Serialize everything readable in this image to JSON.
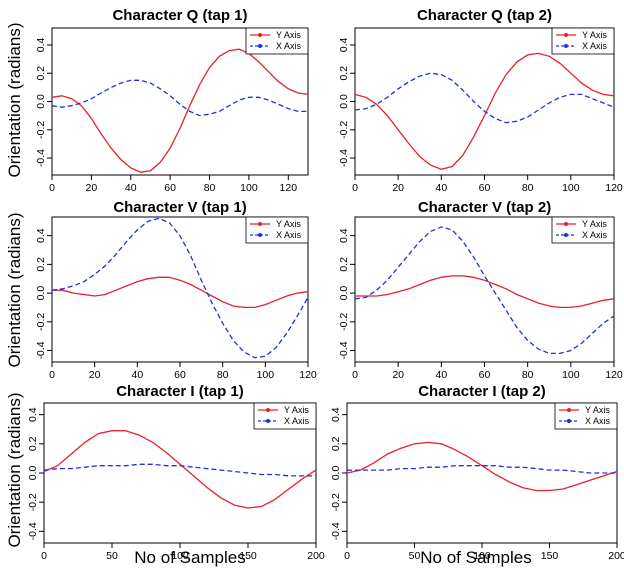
{
  "figure": {
    "ylabel": "Orientation (radians)",
    "xlabel": "No of Samples"
  },
  "chart_data": [
    {
      "type": "line",
      "title": "Character Q (tap 1)",
      "xlim": [
        0,
        130
      ],
      "ylim": [
        -0.52,
        0.52
      ],
      "xticks": [
        0,
        20,
        40,
        60,
        80,
        100,
        120
      ],
      "yticks": [
        -0.4,
        -0.2,
        0.0,
        0.2,
        0.4
      ],
      "legend": "top-right",
      "series": [
        {
          "name": "Y Axis",
          "color": "#e8202a",
          "dash": "solid",
          "x": [
            0,
            5,
            10,
            15,
            20,
            25,
            30,
            35,
            40,
            45,
            50,
            55,
            60,
            65,
            70,
            75,
            80,
            85,
            90,
            95,
            100,
            105,
            110,
            115,
            120,
            125,
            130
          ],
          "y": [
            0.03,
            0.04,
            0.02,
            -0.03,
            -0.12,
            -0.23,
            -0.33,
            -0.41,
            -0.47,
            -0.5,
            -0.49,
            -0.43,
            -0.33,
            -0.19,
            -0.03,
            0.12,
            0.24,
            0.32,
            0.36,
            0.37,
            0.34,
            0.28,
            0.21,
            0.14,
            0.09,
            0.06,
            0.05
          ]
        },
        {
          "name": "X Axis",
          "color": "#2030e0",
          "dash": "dashed",
          "x": [
            0,
            5,
            10,
            15,
            20,
            25,
            30,
            35,
            40,
            45,
            50,
            55,
            60,
            65,
            70,
            75,
            80,
            85,
            90,
            95,
            100,
            105,
            110,
            115,
            120,
            125,
            130
          ],
          "y": [
            -0.03,
            -0.04,
            -0.03,
            -0.01,
            0.02,
            0.06,
            0.1,
            0.13,
            0.15,
            0.15,
            0.13,
            0.09,
            0.04,
            -0.02,
            -0.07,
            -0.1,
            -0.09,
            -0.07,
            -0.03,
            0.01,
            0.03,
            0.03,
            0.01,
            -0.02,
            -0.05,
            -0.07,
            -0.07
          ]
        }
      ]
    },
    {
      "type": "line",
      "title": "Character Q (tap 2)",
      "xlim": [
        0,
        120
      ],
      "ylim": [
        -0.52,
        0.52
      ],
      "xticks": [
        0,
        20,
        40,
        60,
        80,
        100,
        120
      ],
      "yticks": [
        -0.4,
        -0.2,
        0.0,
        0.2,
        0.4
      ],
      "legend": "top-right",
      "series": [
        {
          "name": "Y Axis",
          "color": "#e8202a",
          "dash": "solid",
          "x": [
            0,
            5,
            10,
            15,
            20,
            25,
            30,
            35,
            40,
            45,
            50,
            55,
            60,
            65,
            70,
            75,
            80,
            85,
            90,
            95,
            100,
            105,
            110,
            115,
            120
          ],
          "y": [
            0.05,
            0.03,
            -0.02,
            -0.1,
            -0.2,
            -0.3,
            -0.39,
            -0.45,
            -0.48,
            -0.46,
            -0.38,
            -0.25,
            -0.1,
            0.06,
            0.19,
            0.28,
            0.33,
            0.34,
            0.32,
            0.27,
            0.2,
            0.13,
            0.08,
            0.05,
            0.04
          ]
        },
        {
          "name": "X Axis",
          "color": "#2030e0",
          "dash": "dashed",
          "x": [
            0,
            5,
            10,
            15,
            20,
            25,
            30,
            35,
            40,
            45,
            50,
            55,
            60,
            65,
            70,
            75,
            80,
            85,
            90,
            95,
            100,
            105,
            110,
            115,
            120
          ],
          "y": [
            -0.06,
            -0.05,
            -0.02,
            0.03,
            0.09,
            0.14,
            0.18,
            0.2,
            0.19,
            0.15,
            0.08,
            0.0,
            -0.07,
            -0.12,
            -0.15,
            -0.14,
            -0.11,
            -0.06,
            -0.01,
            0.03,
            0.05,
            0.05,
            0.02,
            -0.01,
            -0.04
          ]
        }
      ]
    },
    {
      "type": "line",
      "title": "Character V (tap 1)",
      "xlim": [
        0,
        120
      ],
      "ylim": [
        -0.48,
        0.53
      ],
      "xticks": [
        0,
        20,
        40,
        60,
        80,
        100,
        120
      ],
      "yticks": [
        -0.4,
        -0.2,
        0.0,
        0.2,
        0.4
      ],
      "legend": "top-right",
      "series": [
        {
          "name": "Y Axis",
          "color": "#e8202a",
          "dash": "solid",
          "x": [
            0,
            5,
            10,
            15,
            20,
            25,
            30,
            35,
            40,
            45,
            50,
            55,
            60,
            65,
            70,
            75,
            80,
            85,
            90,
            95,
            100,
            105,
            110,
            115,
            120
          ],
          "y": [
            0.02,
            0.02,
            0.0,
            -0.01,
            -0.02,
            -0.01,
            0.02,
            0.05,
            0.08,
            0.1,
            0.11,
            0.11,
            0.09,
            0.06,
            0.02,
            -0.02,
            -0.06,
            -0.09,
            -0.1,
            -0.1,
            -0.08,
            -0.05,
            -0.02,
            0.0,
            0.01
          ]
        },
        {
          "name": "X Axis",
          "color": "#2030e0",
          "dash": "dashed",
          "x": [
            0,
            5,
            10,
            15,
            20,
            25,
            30,
            35,
            40,
            45,
            50,
            55,
            60,
            65,
            70,
            75,
            80,
            85,
            90,
            95,
            100,
            105,
            110,
            115,
            120
          ],
          "y": [
            0.02,
            0.03,
            0.05,
            0.08,
            0.13,
            0.19,
            0.27,
            0.36,
            0.44,
            0.5,
            0.52,
            0.49,
            0.4,
            0.26,
            0.09,
            -0.07,
            -0.21,
            -0.33,
            -0.41,
            -0.45,
            -0.44,
            -0.38,
            -0.28,
            -0.16,
            -0.03
          ]
        }
      ]
    },
    {
      "type": "line",
      "title": "Character V (tap 2)",
      "xlim": [
        0,
        120
      ],
      "ylim": [
        -0.48,
        0.53
      ],
      "xticks": [
        0,
        20,
        40,
        60,
        80,
        100,
        120
      ],
      "yticks": [
        -0.4,
        -0.2,
        0.0,
        0.2,
        0.4
      ],
      "legend": "top-right",
      "series": [
        {
          "name": "Y Axis",
          "color": "#e8202a",
          "dash": "solid",
          "x": [
            0,
            5,
            10,
            15,
            20,
            25,
            30,
            35,
            40,
            45,
            50,
            55,
            60,
            65,
            70,
            75,
            80,
            85,
            90,
            95,
            100,
            105,
            110,
            115,
            120
          ],
          "y": [
            -0.02,
            -0.02,
            -0.02,
            -0.01,
            0.01,
            0.03,
            0.06,
            0.09,
            0.11,
            0.12,
            0.12,
            0.11,
            0.09,
            0.06,
            0.03,
            -0.01,
            -0.04,
            -0.07,
            -0.09,
            -0.1,
            -0.1,
            -0.09,
            -0.07,
            -0.05,
            -0.04
          ]
        },
        {
          "name": "X Axis",
          "color": "#2030e0",
          "dash": "dashed",
          "x": [
            0,
            5,
            10,
            15,
            20,
            25,
            30,
            35,
            40,
            45,
            50,
            55,
            60,
            65,
            70,
            75,
            80,
            85,
            90,
            95,
            100,
            105,
            110,
            115,
            120
          ],
          "y": [
            -0.04,
            -0.03,
            0.02,
            0.09,
            0.18,
            0.27,
            0.36,
            0.43,
            0.46,
            0.44,
            0.36,
            0.25,
            0.12,
            0.0,
            -0.12,
            -0.24,
            -0.33,
            -0.39,
            -0.42,
            -0.42,
            -0.4,
            -0.35,
            -0.28,
            -0.21,
            -0.16
          ]
        }
      ]
    },
    {
      "type": "line",
      "title": "Character I (tap 1)",
      "xlim": [
        0,
        200
      ],
      "ylim": [
        -0.48,
        0.48
      ],
      "xticks": [
        0,
        50,
        100,
        150,
        200
      ],
      "yticks": [
        -0.4,
        -0.2,
        0.0,
        0.2,
        0.4
      ],
      "legend": "top-right",
      "series": [
        {
          "name": "Y Axis",
          "color": "#e8202a",
          "dash": "solid",
          "x": [
            0,
            10,
            20,
            30,
            40,
            50,
            60,
            70,
            80,
            90,
            100,
            110,
            120,
            130,
            140,
            150,
            160,
            170,
            180,
            190,
            200
          ],
          "y": [
            0.01,
            0.05,
            0.13,
            0.21,
            0.27,
            0.29,
            0.29,
            0.26,
            0.21,
            0.14,
            0.06,
            -0.02,
            -0.1,
            -0.17,
            -0.22,
            -0.24,
            -0.23,
            -0.18,
            -0.11,
            -0.04,
            0.02
          ]
        },
        {
          "name": "X Axis",
          "color": "#2030e0",
          "dash": "dashed",
          "x": [
            0,
            10,
            20,
            30,
            40,
            50,
            60,
            70,
            80,
            90,
            100,
            110,
            120,
            130,
            140,
            150,
            160,
            170,
            180,
            190,
            200
          ],
          "y": [
            0.02,
            0.03,
            0.03,
            0.04,
            0.05,
            0.05,
            0.05,
            0.06,
            0.06,
            0.05,
            0.05,
            0.04,
            0.03,
            0.02,
            0.01,
            0.0,
            -0.01,
            -0.01,
            -0.02,
            -0.02,
            -0.02
          ]
        }
      ]
    },
    {
      "type": "line",
      "title": "Character I (tap 2)",
      "xlim": [
        0,
        200
      ],
      "ylim": [
        -0.48,
        0.48
      ],
      "xticks": [
        0,
        50,
        100,
        150,
        200
      ],
      "yticks": [
        -0.4,
        -0.2,
        0.0,
        0.2,
        0.4
      ],
      "legend": "top-right",
      "series": [
        {
          "name": "Y Axis",
          "color": "#e8202a",
          "dash": "solid",
          "x": [
            0,
            10,
            20,
            30,
            40,
            50,
            60,
            70,
            80,
            90,
            100,
            110,
            120,
            130,
            140,
            150,
            160,
            170,
            180,
            190,
            200
          ],
          "y": [
            0.0,
            0.02,
            0.07,
            0.13,
            0.17,
            0.2,
            0.21,
            0.2,
            0.16,
            0.11,
            0.05,
            -0.01,
            -0.06,
            -0.1,
            -0.12,
            -0.12,
            -0.11,
            -0.08,
            -0.05,
            -0.02,
            0.01
          ]
        },
        {
          "name": "X Axis",
          "color": "#2030e0",
          "dash": "dashed",
          "x": [
            0,
            10,
            20,
            30,
            40,
            50,
            60,
            70,
            80,
            90,
            100,
            110,
            120,
            130,
            140,
            150,
            160,
            170,
            180,
            190,
            200
          ],
          "y": [
            0.02,
            0.02,
            0.02,
            0.02,
            0.03,
            0.03,
            0.04,
            0.04,
            0.05,
            0.05,
            0.05,
            0.05,
            0.04,
            0.04,
            0.03,
            0.02,
            0.02,
            0.01,
            0.0,
            0.0,
            0.0
          ]
        }
      ]
    }
  ]
}
